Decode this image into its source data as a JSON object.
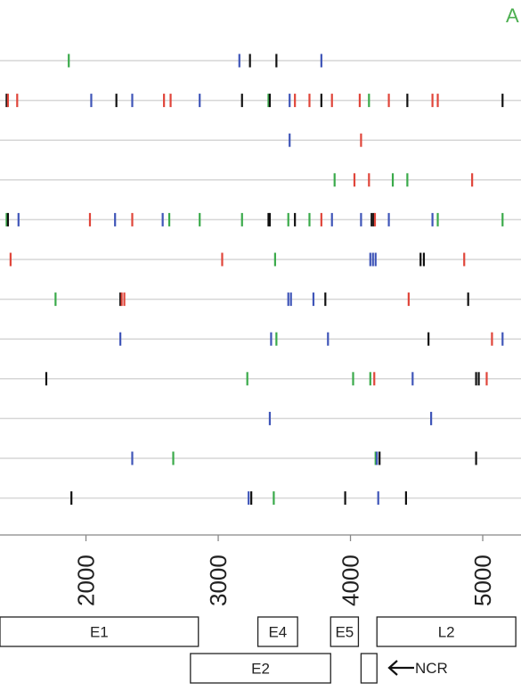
{
  "panel_label": "A",
  "colors": {
    "green": "#3aaa4a",
    "black": "#111111",
    "blue": "#3f55b8",
    "red": "#e0453a",
    "track": "#d6d6d6",
    "panel_label": "#4caf50"
  },
  "chart_data": {
    "type": "strip",
    "xlim": [
      1350,
      5250
    ],
    "x_ticks": [
      2000,
      3000,
      4000,
      5000
    ],
    "tracks": [
      {
        "marks": [
          {
            "x": 1870,
            "c": "green"
          },
          {
            "x": 3160,
            "c": "blue"
          },
          {
            "x": 3240,
            "c": "black"
          },
          {
            "x": 3440,
            "c": "black"
          },
          {
            "x": 3780,
            "c": "blue"
          }
        ]
      },
      {
        "marks": [
          {
            "x": 1400,
            "c": "black"
          },
          {
            "x": 1410,
            "c": "red"
          },
          {
            "x": 1480,
            "c": "red"
          },
          {
            "x": 2040,
            "c": "blue"
          },
          {
            "x": 2230,
            "c": "black"
          },
          {
            "x": 2350,
            "c": "blue"
          },
          {
            "x": 2590,
            "c": "red"
          },
          {
            "x": 2640,
            "c": "red"
          },
          {
            "x": 2860,
            "c": "blue"
          },
          {
            "x": 3180,
            "c": "black"
          },
          {
            "x": 3380,
            "c": "green"
          },
          {
            "x": 3390,
            "c": "black"
          },
          {
            "x": 3540,
            "c": "blue"
          },
          {
            "x": 3580,
            "c": "red"
          },
          {
            "x": 3690,
            "c": "red"
          },
          {
            "x": 3780,
            "c": "black"
          },
          {
            "x": 3860,
            "c": "red"
          },
          {
            "x": 4070,
            "c": "red"
          },
          {
            "x": 4140,
            "c": "green"
          },
          {
            "x": 4290,
            "c": "red"
          },
          {
            "x": 4430,
            "c": "black"
          },
          {
            "x": 4620,
            "c": "red"
          },
          {
            "x": 4660,
            "c": "red"
          },
          {
            "x": 5150,
            "c": "black"
          }
        ]
      },
      {
        "marks": [
          {
            "x": 3540,
            "c": "blue"
          },
          {
            "x": 4080,
            "c": "red"
          }
        ]
      },
      {
        "marks": [
          {
            "x": 3880,
            "c": "green"
          },
          {
            "x": 4030,
            "c": "red"
          },
          {
            "x": 4140,
            "c": "red"
          },
          {
            "x": 4320,
            "c": "green"
          },
          {
            "x": 4430,
            "c": "green"
          },
          {
            "x": 4920,
            "c": "red"
          }
        ]
      },
      {
        "marks": [
          {
            "x": 1400,
            "c": "green"
          },
          {
            "x": 1410,
            "c": "black"
          },
          {
            "x": 1490,
            "c": "blue"
          },
          {
            "x": 2030,
            "c": "red"
          },
          {
            "x": 2220,
            "c": "blue"
          },
          {
            "x": 2350,
            "c": "red"
          },
          {
            "x": 2580,
            "c": "blue"
          },
          {
            "x": 2630,
            "c": "green"
          },
          {
            "x": 2860,
            "c": "green"
          },
          {
            "x": 3180,
            "c": "green"
          },
          {
            "x": 3380,
            "c": "black"
          },
          {
            "x": 3390,
            "c": "black"
          },
          {
            "x": 3530,
            "c": "green"
          },
          {
            "x": 3580,
            "c": "black"
          },
          {
            "x": 3690,
            "c": "green"
          },
          {
            "x": 3780,
            "c": "red"
          },
          {
            "x": 3860,
            "c": "blue"
          },
          {
            "x": 4080,
            "c": "blue"
          },
          {
            "x": 4160,
            "c": "black"
          },
          {
            "x": 4175,
            "c": "black"
          },
          {
            "x": 4185,
            "c": "red"
          },
          {
            "x": 4290,
            "c": "blue"
          },
          {
            "x": 4620,
            "c": "blue"
          },
          {
            "x": 4660,
            "c": "green"
          },
          {
            "x": 5150,
            "c": "green"
          }
        ]
      },
      {
        "marks": [
          {
            "x": 1430,
            "c": "red"
          },
          {
            "x": 3030,
            "c": "red"
          },
          {
            "x": 3430,
            "c": "green"
          },
          {
            "x": 4150,
            "c": "blue"
          },
          {
            "x": 4170,
            "c": "blue"
          },
          {
            "x": 4190,
            "c": "blue"
          },
          {
            "x": 4530,
            "c": "black"
          },
          {
            "x": 4555,
            "c": "black"
          },
          {
            "x": 4860,
            "c": "red"
          }
        ]
      },
      {
        "marks": [
          {
            "x": 1770,
            "c": "green"
          },
          {
            "x": 2260,
            "c": "black"
          },
          {
            "x": 2270,
            "c": "red"
          },
          {
            "x": 2290,
            "c": "red"
          },
          {
            "x": 3530,
            "c": "blue"
          },
          {
            "x": 3550,
            "c": "blue"
          },
          {
            "x": 3720,
            "c": "blue"
          },
          {
            "x": 3810,
            "c": "black"
          },
          {
            "x": 4440,
            "c": "red"
          },
          {
            "x": 4890,
            "c": "black"
          }
        ]
      },
      {
        "marks": [
          {
            "x": 2260,
            "c": "blue"
          },
          {
            "x": 3400,
            "c": "blue"
          },
          {
            "x": 3440,
            "c": "green"
          },
          {
            "x": 3830,
            "c": "blue"
          },
          {
            "x": 4590,
            "c": "black"
          },
          {
            "x": 5070,
            "c": "red"
          },
          {
            "x": 5150,
            "c": "blue"
          }
        ]
      },
      {
        "marks": [
          {
            "x": 1700,
            "c": "black"
          },
          {
            "x": 3220,
            "c": "green"
          },
          {
            "x": 4020,
            "c": "green"
          },
          {
            "x": 4150,
            "c": "green"
          },
          {
            "x": 4180,
            "c": "red"
          },
          {
            "x": 4470,
            "c": "blue"
          },
          {
            "x": 4950,
            "c": "black"
          },
          {
            "x": 4970,
            "c": "black"
          },
          {
            "x": 5030,
            "c": "red"
          }
        ]
      },
      {
        "marks": [
          {
            "x": 3390,
            "c": "blue"
          },
          {
            "x": 4610,
            "c": "blue"
          }
        ]
      },
      {
        "marks": [
          {
            "x": 2350,
            "c": "blue"
          },
          {
            "x": 2660,
            "c": "green"
          },
          {
            "x": 4190,
            "c": "green"
          },
          {
            "x": 4200,
            "c": "blue"
          },
          {
            "x": 4220,
            "c": "black"
          },
          {
            "x": 4950,
            "c": "black"
          }
        ]
      },
      {
        "marks": [
          {
            "x": 1890,
            "c": "black"
          },
          {
            "x": 3230,
            "c": "blue"
          },
          {
            "x": 3250,
            "c": "black"
          },
          {
            "x": 3420,
            "c": "green"
          },
          {
            "x": 3960,
            "c": "black"
          },
          {
            "x": 4210,
            "c": "blue"
          },
          {
            "x": 4420,
            "c": "black"
          }
        ]
      }
    ],
    "genes": [
      {
        "name": "E1",
        "start": 1350,
        "end": 2850,
        "row": 1
      },
      {
        "name": "E4",
        "start": 3300,
        "end": 3600,
        "row": 1
      },
      {
        "name": "E5",
        "start": 3850,
        "end": 4060,
        "row": 1
      },
      {
        "name": "L2",
        "start": 4200,
        "end": 5250,
        "row": 1
      },
      {
        "name": "E2",
        "start": 2790,
        "end": 3850,
        "row": 2
      },
      {
        "name": "",
        "start": 4080,
        "end": 4200,
        "row": 2
      }
    ],
    "ncr_label": "NCR"
  }
}
